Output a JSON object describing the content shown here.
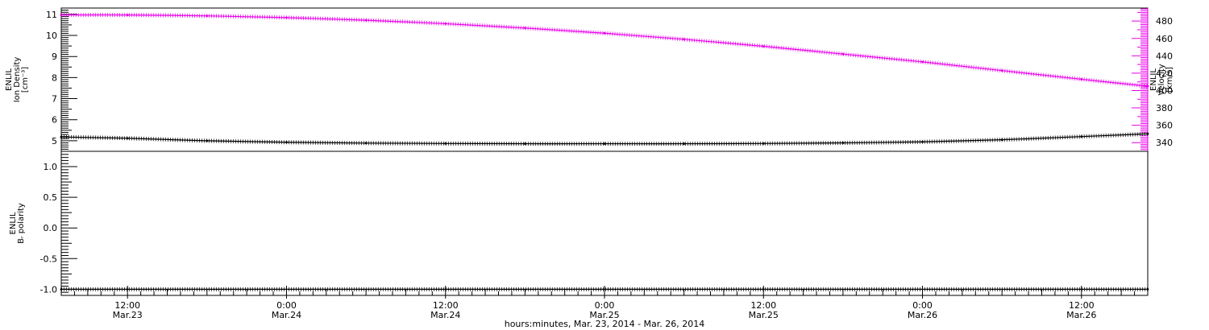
{
  "chart_data": [
    {
      "type": "line",
      "panel": "top",
      "x_domain": [
        "2014-03-23 07:00",
        "2014-03-26 17:00"
      ],
      "y_left": {
        "label_lines": [
          "ENLIL",
          "Ion Density",
          "[cm⁻³]"
        ],
        "range": [
          4.5,
          11.3
        ],
        "ticks": [
          5,
          6,
          7,
          8,
          9,
          10,
          11
        ],
        "tick_labels": [
          "5",
          "6",
          "7",
          "8",
          "9",
          "10",
          "11"
        ]
      },
      "y_right": {
        "label_lines": [
          "ENLIL",
          "Velocity",
          "[km/s]"
        ],
        "range": [
          330,
          495
        ],
        "ticks": [
          340,
          360,
          380,
          400,
          420,
          440,
          460,
          480
        ],
        "tick_labels": [
          "340",
          "360",
          "380",
          "400",
          "420",
          "440",
          "460",
          "480"
        ],
        "color": "#e800e8"
      },
      "series": [
        {
          "axis": "left",
          "color": "#000000",
          "points": [
            [
              "2014-03-23 07:00",
              5.18
            ],
            [
              "2014-03-23 12:00",
              5.12
            ],
            [
              "2014-03-23 18:00",
              5.0
            ],
            [
              "2014-03-24 00:00",
              4.93
            ],
            [
              "2014-03-24 06:00",
              4.89
            ],
            [
              "2014-03-24 12:00",
              4.87
            ],
            [
              "2014-03-24 18:00",
              4.86
            ],
            [
              "2014-03-25 00:00",
              4.86
            ],
            [
              "2014-03-25 06:00",
              4.86
            ],
            [
              "2014-03-25 12:00",
              4.87
            ],
            [
              "2014-03-25 18:00",
              4.9
            ],
            [
              "2014-03-26 00:00",
              4.95
            ],
            [
              "2014-03-26 06:00",
              5.05
            ],
            [
              "2014-03-26 12:00",
              5.2
            ],
            [
              "2014-03-26 17:00",
              5.33
            ]
          ]
        },
        {
          "axis": "right",
          "color": "#e800e8",
          "points": [
            [
              "2014-03-23 07:00",
              487
            ],
            [
              "2014-03-23 12:00",
              487
            ],
            [
              "2014-03-23 18:00",
              486
            ],
            [
              "2014-03-24 00:00",
              484
            ],
            [
              "2014-03-24 06:00",
              481
            ],
            [
              "2014-03-24 12:00",
              477
            ],
            [
              "2014-03-24 18:00",
              472
            ],
            [
              "2014-03-25 00:00",
              466
            ],
            [
              "2014-03-25 06:00",
              459
            ],
            [
              "2014-03-25 12:00",
              451
            ],
            [
              "2014-03-25 18:00",
              442
            ],
            [
              "2014-03-26 00:00",
              433
            ],
            [
              "2014-03-26 06:00",
              423
            ],
            [
              "2014-03-26 12:00",
              413
            ],
            [
              "2014-03-26 17:00",
              405
            ]
          ]
        }
      ]
    },
    {
      "type": "line",
      "panel": "bottom",
      "x_domain": [
        "2014-03-23 07:00",
        "2014-03-26 17:00"
      ],
      "y_left": {
        "label_lines": [
          "ENLIL",
          "Bᵣ polarity"
        ],
        "range": [
          -1.1,
          1.25
        ],
        "ticks": [
          -1.0,
          -0.5,
          0.0,
          0.5,
          1.0
        ],
        "tick_labels": [
          "-1.0",
          "-0.5",
          "0.0",
          "0.5",
          "1.0"
        ]
      },
      "series": [
        {
          "axis": "left",
          "color": "#000000",
          "points": [
            [
              "2014-03-23 07:00",
              -1.0
            ],
            [
              "2014-03-26 17:00",
              -1.0
            ]
          ]
        }
      ]
    }
  ],
  "x_axis": {
    "tick_labels": [
      {
        "x": "2014-03-23 12:00",
        "time": "12:00",
        "date": "Mar.23"
      },
      {
        "x": "2014-03-24 00:00",
        "time": "0:00",
        "date": "Mar.24"
      },
      {
        "x": "2014-03-24 12:00",
        "time": "12:00",
        "date": "Mar.24"
      },
      {
        "x": "2014-03-25 00:00",
        "time": "0:00",
        "date": "Mar.25"
      },
      {
        "x": "2014-03-25 12:00",
        "time": "12:00",
        "date": "Mar.25"
      },
      {
        "x": "2014-03-26 00:00",
        "time": "0:00",
        "date": "Mar.26"
      },
      {
        "x": "2014-03-26 12:00",
        "time": "12:00",
        "date": "Mar.26"
      }
    ],
    "title": "hours:minutes, Mar. 23, 2014 - Mar. 26, 2014"
  }
}
